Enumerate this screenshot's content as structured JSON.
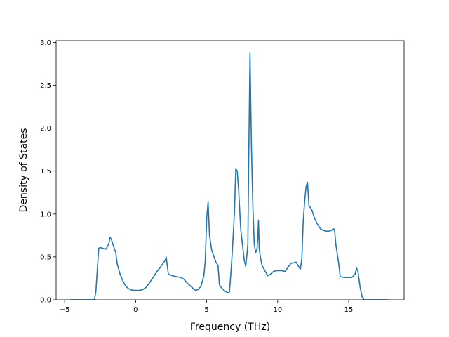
{
  "chart_data": {
    "type": "line",
    "title": "",
    "xlabel": "Frequency (THz)",
    "ylabel": "Density of States",
    "xlim": [
      -5.6,
      18.9
    ],
    "ylim": [
      0,
      3.02
    ],
    "xticks": [
      -5,
      0,
      5,
      10,
      15
    ],
    "yticks": [
      0.0,
      0.5,
      1.0,
      1.5,
      2.0,
      2.5,
      3.0
    ],
    "xtick_labels": [
      "−5",
      "0",
      "5",
      "10",
      "15"
    ],
    "ytick_labels": [
      "0.0",
      "0.5",
      "1.0",
      "1.5",
      "2.0",
      "2.5",
      "3.0"
    ],
    "grid": false,
    "legend": "none",
    "line_color": "#1f77b4",
    "series": [
      {
        "x": [
          -4.6,
          -3.5,
          -2.9,
          -2.8,
          -2.7,
          -2.6,
          -2.5,
          -2.3,
          -2.1,
          -2.0,
          -1.9,
          -1.8,
          -1.7,
          -1.55,
          -1.4,
          -1.3,
          -1.1,
          -0.9,
          -0.7,
          -0.5,
          -0.3,
          -0.1,
          0.1,
          0.3,
          0.5,
          0.7,
          0.9,
          1.1,
          1.3,
          1.5,
          1.7,
          1.9,
          2.0,
          2.1,
          2.15,
          2.3,
          2.6,
          2.9,
          3.2,
          3.4,
          3.6,
          3.8,
          4.0,
          4.2,
          4.4,
          4.6,
          4.8,
          4.9,
          5.0,
          5.1,
          5.2,
          5.35,
          5.5,
          5.65,
          5.8,
          5.9,
          6.1,
          6.3,
          6.5,
          6.6,
          6.7,
          6.8,
          6.95,
          7.05,
          7.15,
          7.25,
          7.4,
          7.55,
          7.65,
          7.75,
          7.85,
          7.9,
          7.95,
          8.05,
          8.15,
          8.25,
          8.35,
          8.45,
          8.55,
          8.6,
          8.65,
          8.7,
          8.8,
          8.9,
          9.1,
          9.3,
          9.5,
          9.7,
          9.9,
          10.1,
          10.3,
          10.5,
          10.7,
          10.9,
          11.0,
          11.1,
          11.3,
          11.5,
          11.6,
          11.7,
          11.8,
          11.9,
          12.0,
          12.1,
          12.2,
          12.4,
          12.6,
          12.8,
          13.0,
          13.2,
          13.4,
          13.6,
          13.8,
          13.9,
          14.0,
          14.1,
          14.3,
          14.4,
          14.7,
          15.0,
          15.2,
          15.35,
          15.45,
          15.55,
          15.65,
          15.8,
          15.95,
          16.1,
          16.5,
          17.0,
          17.8
        ],
        "y": [
          0.0,
          0.0,
          0.0,
          0.1,
          0.35,
          0.6,
          0.61,
          0.6,
          0.59,
          0.62,
          0.65,
          0.73,
          0.7,
          0.62,
          0.55,
          0.42,
          0.3,
          0.22,
          0.16,
          0.13,
          0.115,
          0.11,
          0.11,
          0.11,
          0.12,
          0.14,
          0.18,
          0.23,
          0.28,
          0.33,
          0.37,
          0.42,
          0.44,
          0.47,
          0.5,
          0.3,
          0.28,
          0.27,
          0.26,
          0.24,
          0.2,
          0.17,
          0.14,
          0.11,
          0.12,
          0.16,
          0.28,
          0.45,
          0.95,
          1.14,
          0.75,
          0.58,
          0.51,
          0.44,
          0.4,
          0.17,
          0.13,
          0.1,
          0.08,
          0.09,
          0.3,
          0.55,
          1.0,
          1.53,
          1.5,
          1.28,
          0.82,
          0.6,
          0.46,
          0.39,
          0.55,
          0.65,
          1.5,
          2.88,
          1.8,
          1.1,
          0.65,
          0.55,
          0.6,
          0.72,
          0.93,
          0.6,
          0.48,
          0.4,
          0.34,
          0.28,
          0.3,
          0.33,
          0.34,
          0.34,
          0.34,
          0.33,
          0.37,
          0.42,
          0.43,
          0.43,
          0.44,
          0.38,
          0.36,
          0.48,
          0.92,
          1.15,
          1.32,
          1.37,
          1.1,
          1.05,
          0.95,
          0.88,
          0.83,
          0.81,
          0.8,
          0.8,
          0.81,
          0.83,
          0.82,
          0.64,
          0.42,
          0.27,
          0.26,
          0.26,
          0.26,
          0.28,
          0.3,
          0.37,
          0.33,
          0.15,
          0.03,
          0.0,
          0.0,
          0.0,
          0.0
        ]
      }
    ]
  }
}
